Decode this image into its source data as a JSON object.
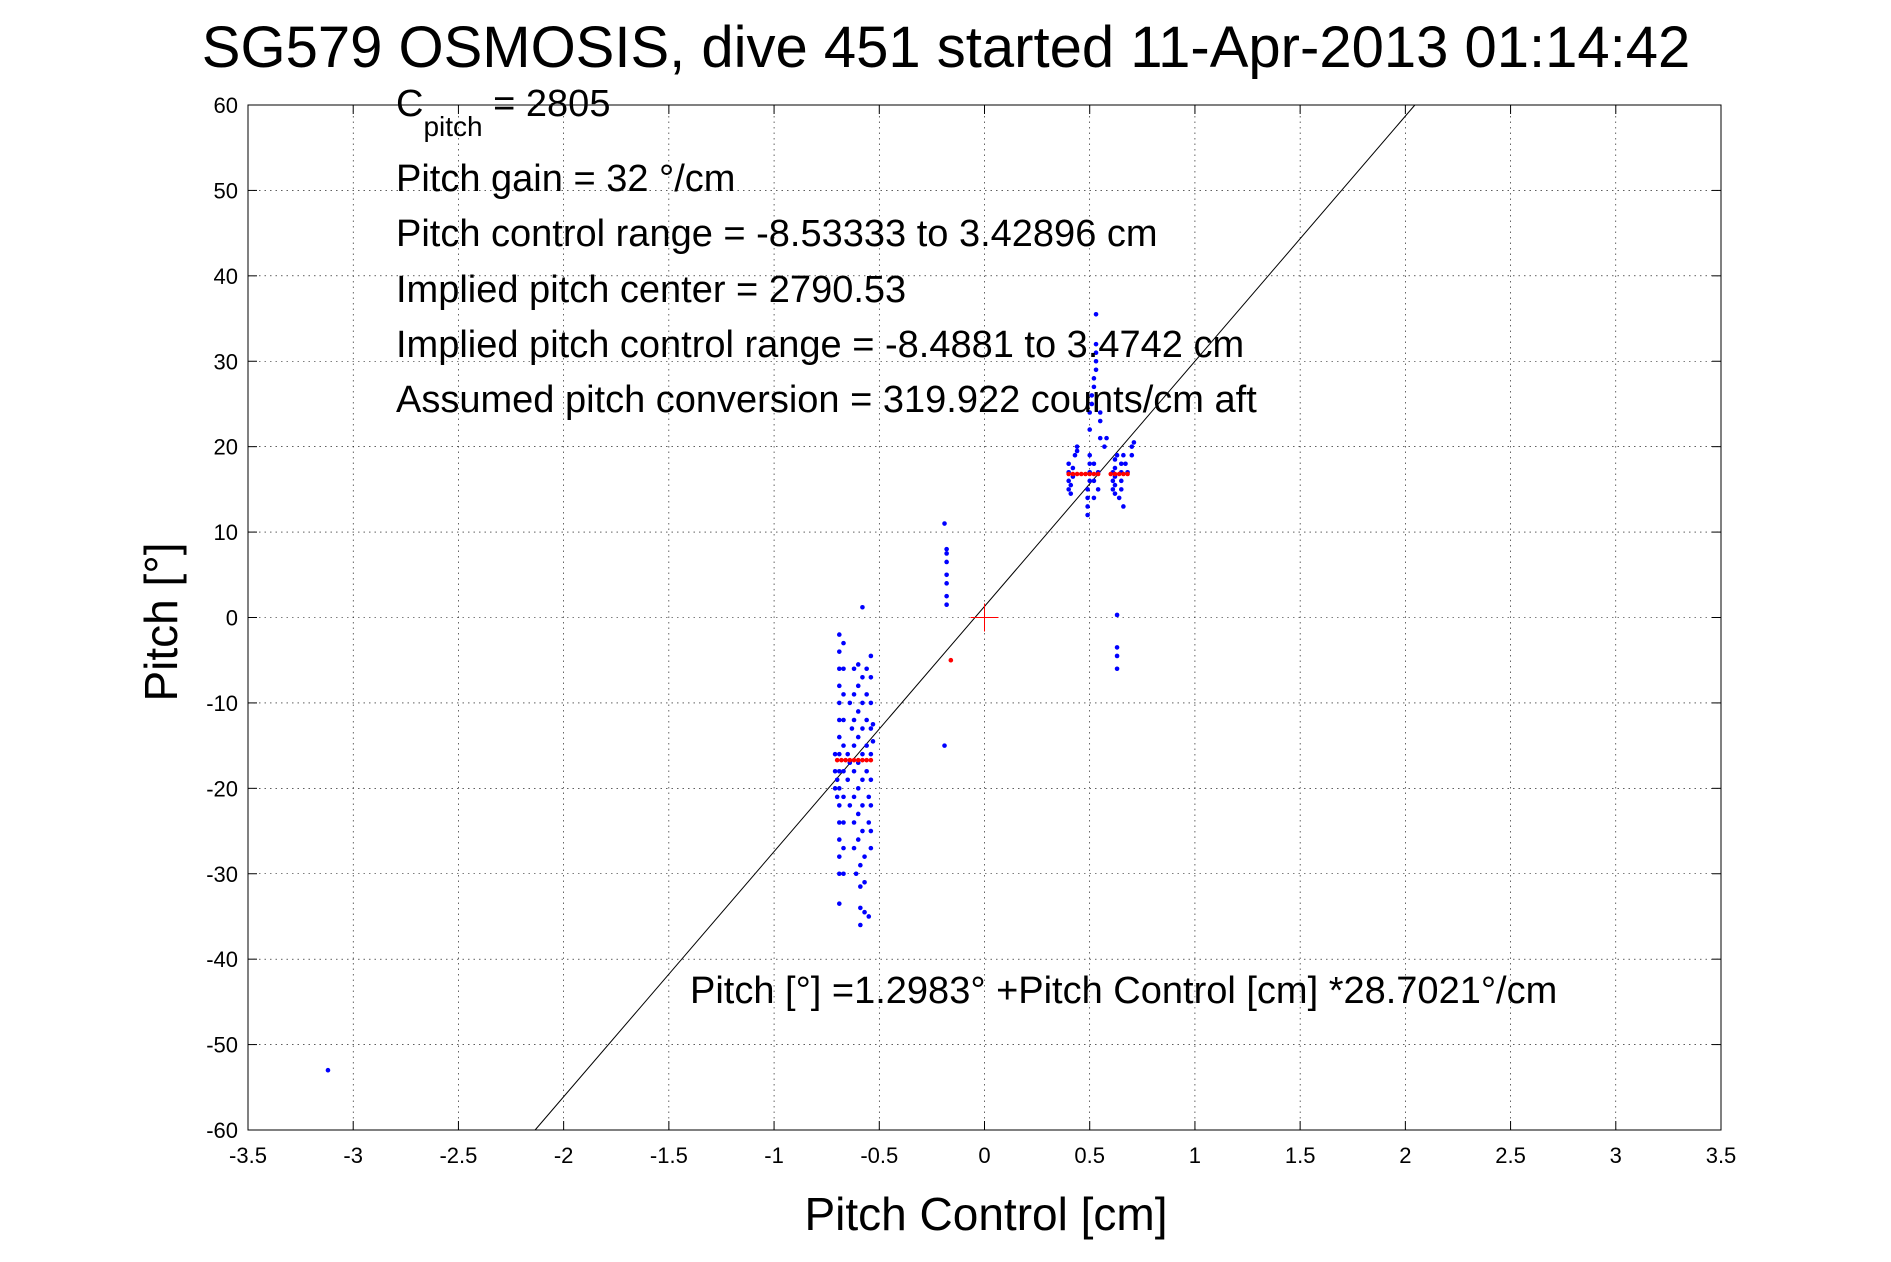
{
  "chart_data": {
    "type": "scatter",
    "title": "SG579 OSMOSIS, dive 451 started 11-Apr-2013 01:14:42",
    "xlabel": "Pitch Control [cm]",
    "ylabel": "Pitch [°]",
    "xlim": [
      -3.5,
      3.5
    ],
    "ylim": [
      -60,
      60
    ],
    "xticks": [
      -3.5,
      -3,
      -2.5,
      -2,
      -1.5,
      -1,
      -0.5,
      0,
      0.5,
      1,
      1.5,
      2,
      2.5,
      3,
      3.5
    ],
    "yticks": [
      -60,
      -50,
      -40,
      -30,
      -20,
      -10,
      0,
      10,
      20,
      30,
      40,
      50,
      60
    ],
    "xtick_labels": [
      "-3.5",
      "-3",
      "-2.5",
      "-2",
      "-1.5",
      "-1",
      "-0.5",
      "0",
      "0.5",
      "1",
      "1.5",
      "2",
      "2.5",
      "3",
      "3.5"
    ],
    "ytick_labels": [
      "-60",
      "-50",
      "-40",
      "-30",
      "-20",
      "-10",
      "0",
      "10",
      "20",
      "30",
      "40",
      "50",
      "60"
    ],
    "grid": true,
    "annotations": {
      "c_pitch_main": "C",
      "c_pitch_sub": "pitch",
      "c_pitch_value": " = 2805",
      "lines": [
        "Pitch gain = 32 °/cm",
        "Pitch control range = -8.53333 to 3.42896 cm",
        "Implied pitch center = 2790.53",
        "Implied pitch control range = -8.4881 to 3.4742 cm",
        "Assumed pitch conversion = 319.922 counts/cm aft"
      ],
      "fit_equation": "Pitch [°] =1.2983° +Pitch Control [cm] *28.7021°/cm"
    },
    "fit_line": {
      "intercept": 1.2983,
      "slope": 28.7021,
      "color": "#000000"
    },
    "center_marker": {
      "x": 0,
      "y": 0,
      "color": "#ff0000"
    },
    "series": [
      {
        "color": "#0000ff",
        "points": [
          [
            -3.12,
            -53
          ],
          [
            -0.71,
            -16
          ],
          [
            -0.71,
            -18
          ],
          [
            -0.71,
            -20
          ],
          [
            -0.7,
            -19
          ],
          [
            -0.7,
            -21
          ],
          [
            -0.69,
            -2
          ],
          [
            -0.69,
            -4
          ],
          [
            -0.69,
            -6
          ],
          [
            -0.69,
            -8
          ],
          [
            -0.69,
            -10
          ],
          [
            -0.69,
            -12
          ],
          [
            -0.69,
            -14
          ],
          [
            -0.69,
            -16
          ],
          [
            -0.69,
            -18
          ],
          [
            -0.69,
            -20
          ],
          [
            -0.69,
            -22
          ],
          [
            -0.69,
            -24
          ],
          [
            -0.69,
            -26
          ],
          [
            -0.69,
            -28
          ],
          [
            -0.69,
            -30
          ],
          [
            -0.69,
            -33.5
          ],
          [
            -0.67,
            -3
          ],
          [
            -0.67,
            -6
          ],
          [
            -0.67,
            -9
          ],
          [
            -0.67,
            -12
          ],
          [
            -0.67,
            -15
          ],
          [
            -0.67,
            -18
          ],
          [
            -0.67,
            -21
          ],
          [
            -0.67,
            -24
          ],
          [
            -0.67,
            -27
          ],
          [
            -0.67,
            -30
          ],
          [
            -0.65,
            -16
          ],
          [
            -0.65,
            -19
          ],
          [
            -0.64,
            -10
          ],
          [
            -0.64,
            -17
          ],
          [
            -0.64,
            -22
          ],
          [
            -0.63,
            -13
          ],
          [
            -0.62,
            -6
          ],
          [
            -0.62,
            -9
          ],
          [
            -0.62,
            -12
          ],
          [
            -0.62,
            -15
          ],
          [
            -0.62,
            -18
          ],
          [
            -0.62,
            -21
          ],
          [
            -0.62,
            -24
          ],
          [
            -0.62,
            -27
          ],
          [
            -0.61,
            -30
          ],
          [
            -0.6,
            -5.5
          ],
          [
            -0.6,
            -8
          ],
          [
            -0.6,
            -11
          ],
          [
            -0.6,
            -14
          ],
          [
            -0.6,
            -17
          ],
          [
            -0.6,
            -20
          ],
          [
            -0.6,
            -23
          ],
          [
            -0.6,
            -26
          ],
          [
            -0.59,
            -29
          ],
          [
            -0.59,
            -31.5
          ],
          [
            -0.59,
            -34
          ],
          [
            -0.59,
            -36
          ],
          [
            -0.58,
            -7
          ],
          [
            -0.58,
            -10
          ],
          [
            -0.58,
            -13
          ],
          [
            -0.58,
            -16
          ],
          [
            -0.58,
            -19
          ],
          [
            -0.58,
            -22
          ],
          [
            -0.58,
            -25
          ],
          [
            -0.57,
            -28
          ],
          [
            -0.57,
            -31
          ],
          [
            -0.57,
            -34.5
          ],
          [
            -0.56,
            -6
          ],
          [
            -0.56,
            -9
          ],
          [
            -0.56,
            -12
          ],
          [
            -0.56,
            -15
          ],
          [
            -0.56,
            -18
          ],
          [
            -0.55,
            -21
          ],
          [
            -0.55,
            -24
          ],
          [
            -0.55,
            -35
          ],
          [
            -0.54,
            -4.5
          ],
          [
            -0.54,
            -7
          ],
          [
            -0.54,
            -10
          ],
          [
            -0.54,
            -13
          ],
          [
            -0.54,
            -16
          ],
          [
            -0.54,
            -19
          ],
          [
            -0.54,
            -22
          ],
          [
            -0.54,
            -25
          ],
          [
            -0.54,
            -27
          ],
          [
            -0.53,
            -14.5
          ],
          [
            -0.53,
            -12.5
          ],
          [
            -0.58,
            1.2
          ],
          [
            -0.19,
            11
          ],
          [
            -0.18,
            8
          ],
          [
            -0.18,
            7.5
          ],
          [
            -0.18,
            6.5
          ],
          [
            -0.18,
            5
          ],
          [
            -0.18,
            4
          ],
          [
            -0.18,
            2.5
          ],
          [
            -0.18,
            1.5
          ],
          [
            -0.19,
            -15
          ],
          [
            0.4,
            15
          ],
          [
            0.4,
            16
          ],
          [
            0.4,
            17
          ],
          [
            0.4,
            18
          ],
          [
            0.41,
            14.5
          ],
          [
            0.41,
            15.5
          ],
          [
            0.42,
            16.5
          ],
          [
            0.42,
            17.5
          ],
          [
            0.43,
            19
          ],
          [
            0.44,
            19.5
          ],
          [
            0.44,
            20
          ],
          [
            0.49,
            12
          ],
          [
            0.49,
            13
          ],
          [
            0.49,
            14
          ],
          [
            0.49,
            15
          ],
          [
            0.5,
            16
          ],
          [
            0.5,
            17
          ],
          [
            0.5,
            18
          ],
          [
            0.5,
            19
          ],
          [
            0.5,
            22
          ],
          [
            0.5,
            24
          ],
          [
            0.51,
            25
          ],
          [
            0.51,
            26
          ],
          [
            0.52,
            14
          ],
          [
            0.52,
            16
          ],
          [
            0.52,
            18
          ],
          [
            0.52,
            27
          ],
          [
            0.52,
            28
          ],
          [
            0.53,
            29
          ],
          [
            0.53,
            30
          ],
          [
            0.53,
            31
          ],
          [
            0.53,
            32
          ],
          [
            0.53,
            35.5
          ],
          [
            0.54,
            15
          ],
          [
            0.54,
            17
          ],
          [
            0.55,
            21
          ],
          [
            0.55,
            23
          ],
          [
            0.55,
            24
          ],
          [
            0.57,
            20
          ],
          [
            0.58,
            21
          ],
          [
            0.61,
            15
          ],
          [
            0.61,
            16
          ],
          [
            0.61,
            17
          ],
          [
            0.62,
            14.5
          ],
          [
            0.62,
            15.5
          ],
          [
            0.62,
            16.5
          ],
          [
            0.62,
            17.5
          ],
          [
            0.62,
            18.5
          ],
          [
            0.63,
            19
          ],
          [
            0.63,
            0.3
          ],
          [
            0.63,
            -3.5
          ],
          [
            0.63,
            -4.5
          ],
          [
            0.63,
            -6
          ],
          [
            0.64,
            14
          ],
          [
            0.65,
            15
          ],
          [
            0.65,
            16
          ],
          [
            0.65,
            17
          ],
          [
            0.65,
            18
          ],
          [
            0.66,
            19
          ],
          [
            0.66,
            13
          ],
          [
            0.67,
            18
          ],
          [
            0.68,
            17
          ],
          [
            0.7,
            19
          ],
          [
            0.7,
            20
          ],
          [
            0.71,
            20.5
          ]
        ]
      },
      {
        "color": "#ff0000",
        "points": [
          [
            -0.7,
            -16.7
          ],
          [
            -0.68,
            -16.7
          ],
          [
            -0.66,
            -16.7
          ],
          [
            -0.64,
            -16.7
          ],
          [
            -0.62,
            -16.7
          ],
          [
            -0.6,
            -16.7
          ],
          [
            -0.58,
            -16.7
          ],
          [
            -0.56,
            -16.7
          ],
          [
            -0.54,
            -16.7
          ],
          [
            -0.16,
            -5
          ],
          [
            0.4,
            16.8
          ],
          [
            0.42,
            16.8
          ],
          [
            0.44,
            16.8
          ],
          [
            0.46,
            16.8
          ],
          [
            0.48,
            16.8
          ],
          [
            0.5,
            16.8
          ],
          [
            0.52,
            16.8
          ],
          [
            0.54,
            16.8
          ],
          [
            0.6,
            16.8
          ],
          [
            0.62,
            16.8
          ],
          [
            0.64,
            16.8
          ],
          [
            0.66,
            16.8
          ],
          [
            0.68,
            16.8
          ]
        ]
      }
    ]
  }
}
